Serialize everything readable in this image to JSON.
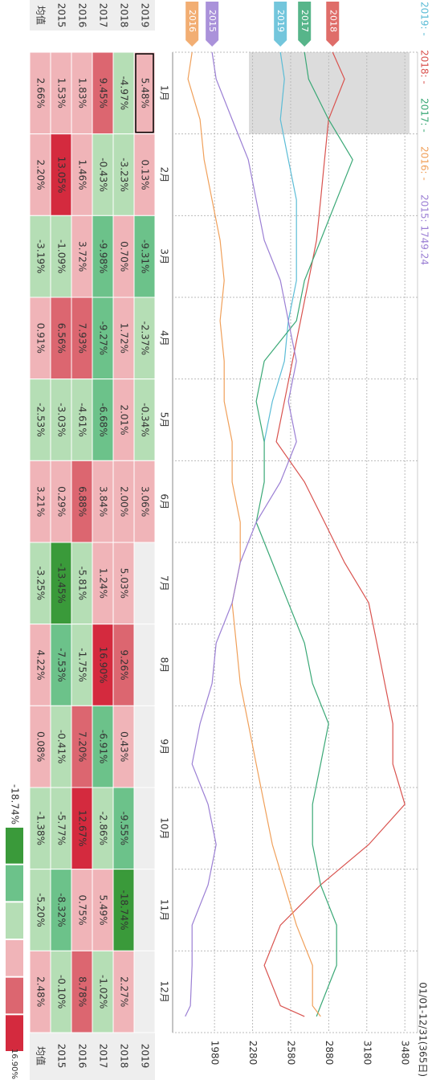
{
  "legend": [
    "2019: -",
    "2018: -",
    "2017: -",
    "2016: -",
    "2015: 1749.24"
  ],
  "date_range": "01/01-12/31(365日)",
  "chart_data": {
    "type": "line",
    "x": [
      0,
      10,
      25,
      40,
      55,
      70,
      85,
      100,
      115,
      130,
      145,
      160,
      175,
      190,
      205,
      220,
      235,
      250,
      265,
      280,
      295,
      310,
      325,
      340,
      355,
      359
    ],
    "xlim": [
      0,
      365
    ],
    "ylim": [
      1650,
      3580
    ],
    "yticks": [
      1980,
      2280,
      2580,
      2880,
      3180,
      3480
    ],
    "grid": true,
    "series": [
      {
        "name": "2019",
        "color": "#5bbcd6",
        "values": [
          2499,
          2531,
          2499,
          2562,
          2626,
          2626,
          2626,
          2562,
          2531,
          2436,
          2372,
          null,
          null,
          null,
          null,
          null,
          null,
          null,
          null,
          null,
          null,
          null,
          null,
          null,
          null,
          null
        ]
      },
      {
        "name": "2018",
        "color": "#d9534f",
        "values": [
          2911,
          3005,
          2879,
          2847,
          2816,
          2784,
          2721,
          2658,
          2594,
          2531,
          2467,
          2689,
          2847,
          3005,
          3195,
          3259,
          3322,
          3385,
          3385,
          3480,
          3195,
          2816,
          2499,
          2372,
          2499,
          2689
        ]
      },
      {
        "name": "2017",
        "color": "#3aa876",
        "values": [
          2689,
          2721,
          2879,
          3069,
          2942,
          2816,
          2689,
          2626,
          2372,
          2309,
          2372,
          2372,
          2309,
          2436,
          2562,
          2689,
          2752,
          2879,
          2816,
          2752,
          2752,
          2816,
          2942,
          2942,
          2816,
          2784
        ]
      },
      {
        "name": "2016",
        "color": "#f0a05a",
        "values": [
          1803,
          1771,
          1866,
          1898,
          1961,
          2024,
          2056,
          2024,
          2056,
          2056,
          2119,
          2119,
          2183,
          2183,
          2119,
          2151,
          2183,
          2246,
          2309,
          2372,
          2436,
          2531,
          2626,
          2752,
          2752,
          2816
        ]
      },
      {
        "name": "2015",
        "color": "#9b7fd4",
        "values": [
          1961,
          1993,
          2119,
          2246,
          2309,
          2372,
          2499,
          2562,
          2626,
          2562,
          2626,
          2499,
          2309,
          2183,
          2119,
          1993,
          1961,
          1866,
          1803,
          1929,
          1993,
          1929,
          1803,
          1803,
          1790,
          1749.24
        ]
      }
    ]
  },
  "table": {
    "columns": [
      "1月",
      "2月",
      "3月",
      "4月",
      "5月",
      "6月",
      "7月",
      "8月",
      "9月",
      "10月",
      "11月",
      "12月"
    ],
    "row_labels": [
      "2019",
      "2018",
      "2017",
      "2016",
      "2015",
      "均值"
    ],
    "rows": [
      [
        "5.48%",
        "0.13%",
        "-9.31%",
        "-2.37%",
        "-0.34%",
        "3.06%",
        null,
        null,
        null,
        null,
        null,
        null
      ],
      [
        "-4.97%",
        "-3.23%",
        "0.70%",
        "1.72%",
        "2.01%",
        "2.00%",
        "5.03%",
        "9.26%",
        "0.43%",
        "-9.55%",
        "-18.74%",
        "2.27%"
      ],
      [
        "9.45%",
        "-0.43%",
        "-9.98%",
        "-9.27%",
        "-6.68%",
        "3.84%",
        "1.24%",
        "16.90%",
        "-6.91%",
        "-2.86%",
        "5.49%",
        "-1.02%"
      ],
      [
        "1.83%",
        "1.46%",
        "3.72%",
        "7.93%",
        "-4.61%",
        "6.88%",
        "-5.81%",
        "-1.75%",
        "7.20%",
        "12.67%",
        "0.75%",
        "8.78%"
      ],
      [
        "1.53%",
        "13.05%",
        "-1.09%",
        "6.56%",
        "-3.03%",
        "0.29%",
        "-13.45%",
        "-7.53%",
        "-0.41%",
        "-5.77%",
        "-8.32%",
        "-0.10%"
      ],
      [
        "2.66%",
        "2.20%",
        "-3.19%",
        "0.91%",
        "-2.53%",
        "3.21%",
        "-3.25%",
        "4.22%",
        "0.08%",
        "-1.38%",
        "-5.20%",
        "2.48%"
      ]
    ]
  },
  "color_scale": {
    "min": {
      "value": -18.74,
      "label": "-18.74%"
    },
    "max": {
      "value": 16.9,
      "label": "16.90%"
    },
    "colors": [
      "#3a9a3a",
      "#6cc28a",
      "#b5deb5",
      "#f0b4b8",
      "#dc6670",
      "#d42a3e"
    ]
  }
}
